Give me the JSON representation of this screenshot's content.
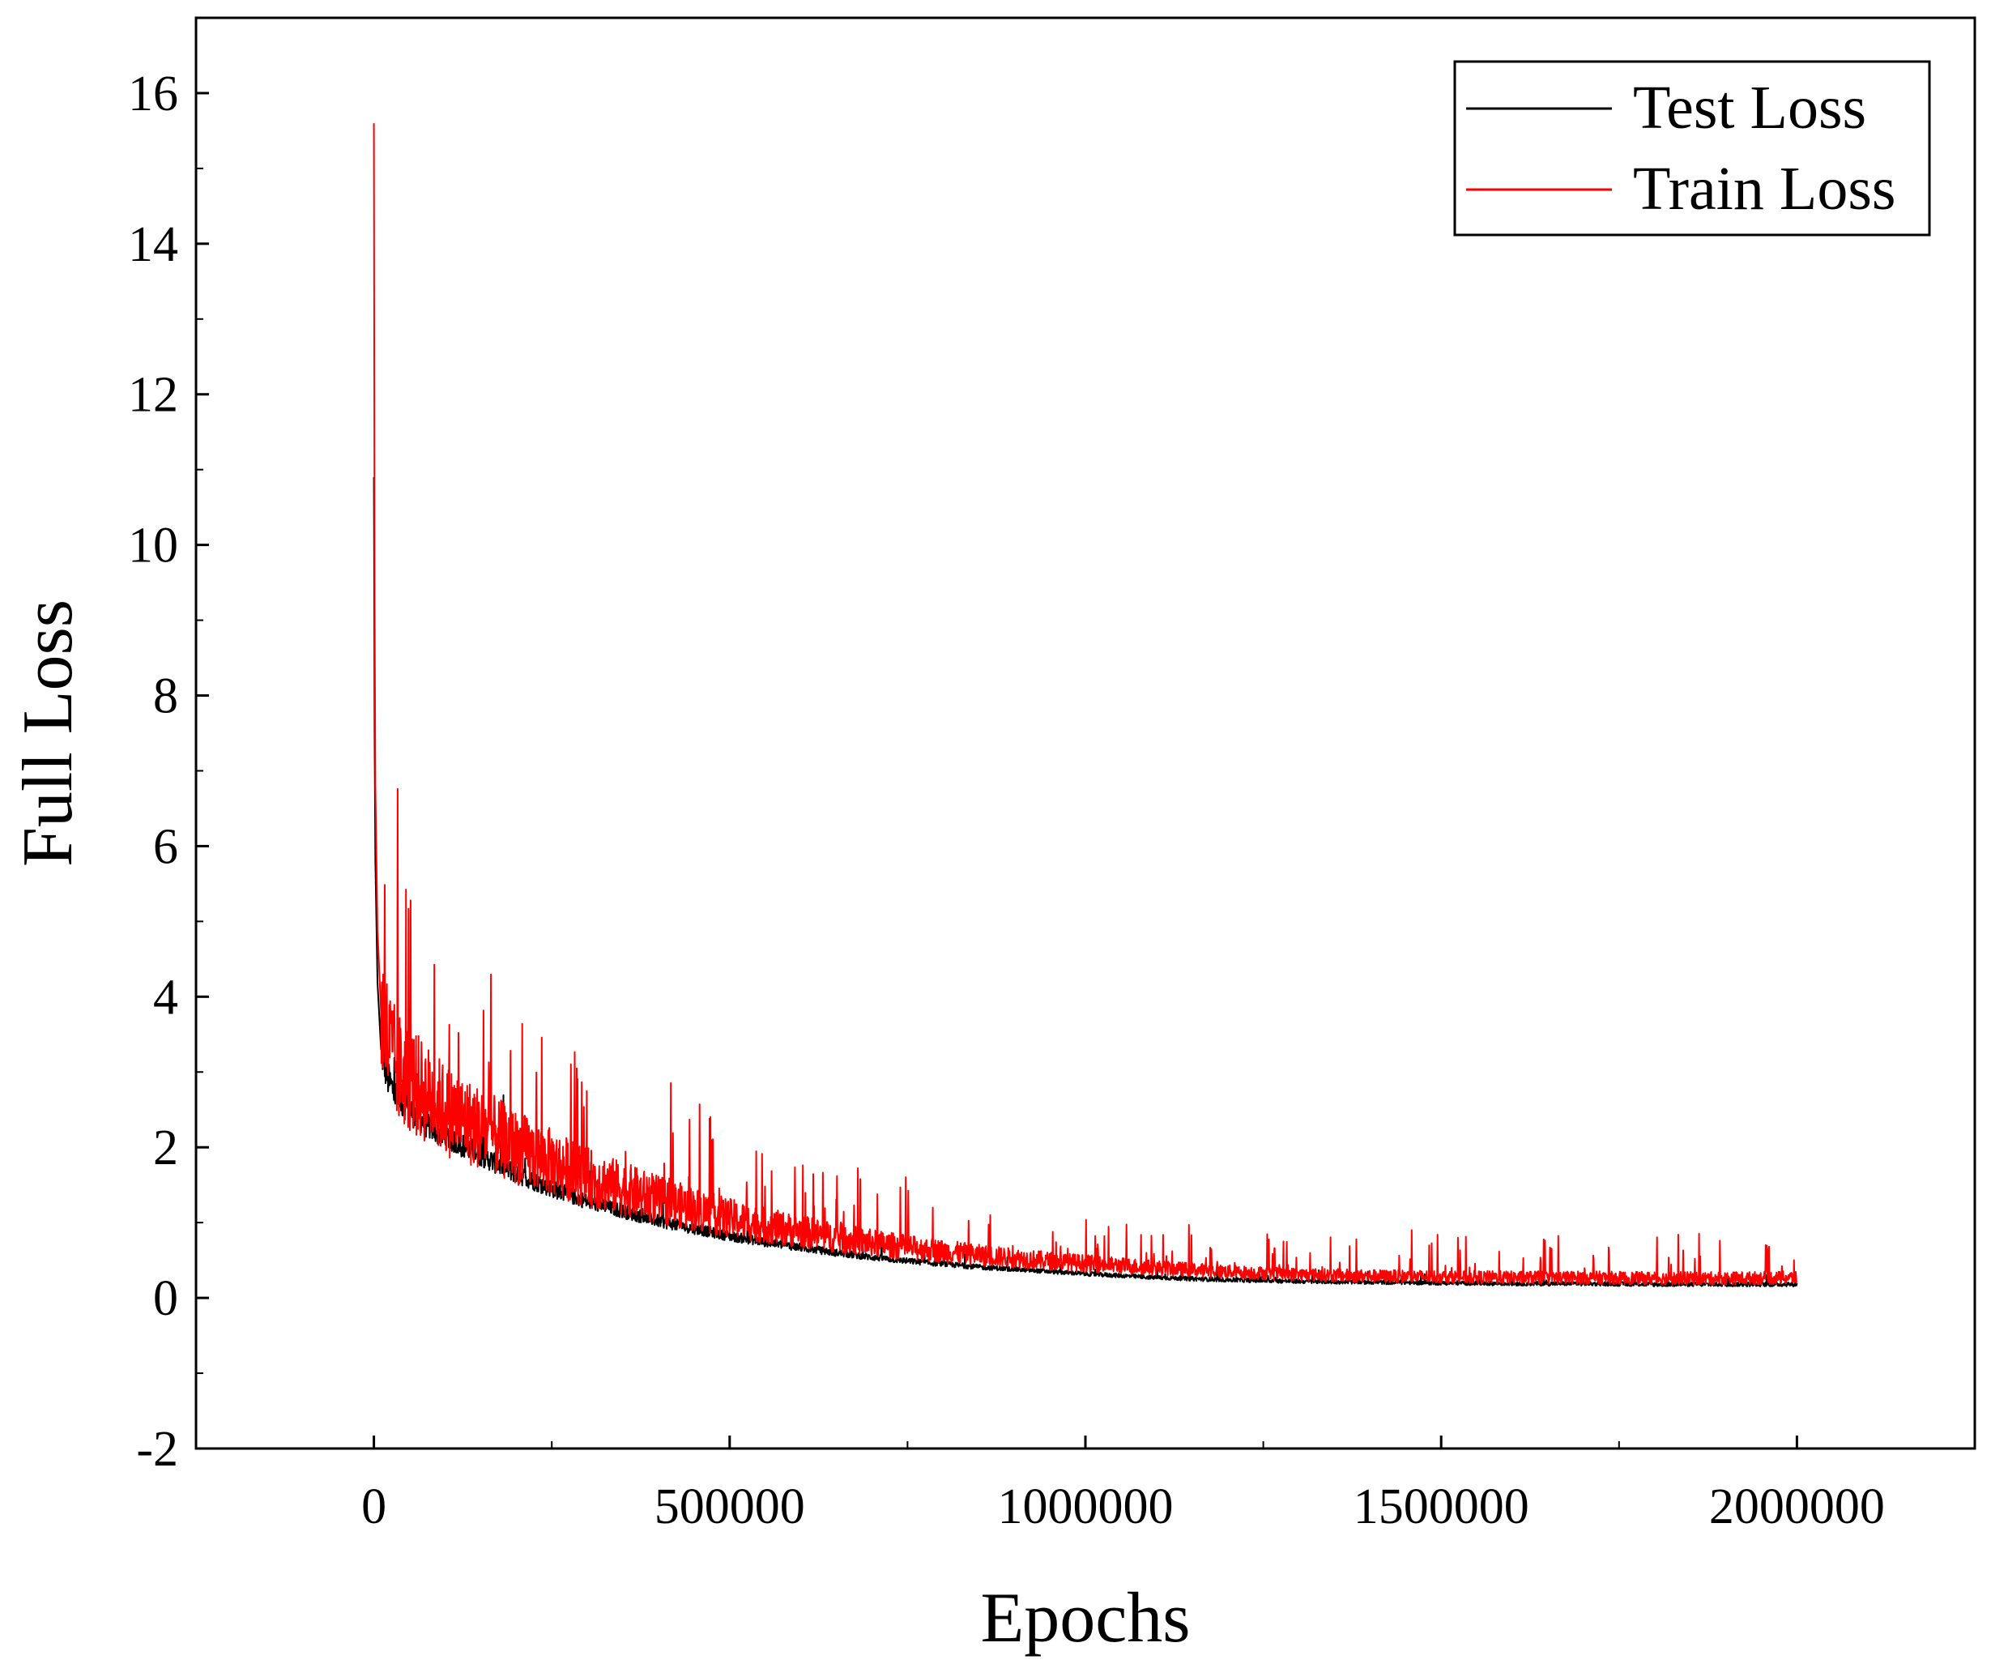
{
  "chart_data": {
    "type": "line",
    "title": "",
    "xlabel": "Epochs",
    "ylabel": "Full Loss",
    "xlim": [
      -250000,
      2250000
    ],
    "ylim": [
      -2,
      17
    ],
    "x_ticks": [
      0,
      500000,
      1000000,
      1500000,
      2000000
    ],
    "x_tick_labels": [
      "0",
      "500000",
      "1000000",
      "1500000",
      "2000000"
    ],
    "y_ticks": [
      -2,
      0,
      2,
      4,
      6,
      8,
      10,
      12,
      14,
      16
    ],
    "y_tick_labels": [
      "-2",
      "0",
      "2",
      "4",
      "6",
      "8",
      "10",
      "12",
      "14",
      "16"
    ],
    "grid": false,
    "legend_position": "top-right",
    "series": [
      {
        "name": "Test Loss",
        "color": "#000000",
        "x": [
          0,
          1000,
          2000,
          5000,
          10000,
          20000,
          30000,
          50000,
          75000,
          100000,
          150000,
          200000,
          250000,
          300000,
          350000,
          400000,
          450000,
          500000,
          550000,
          600000,
          650000,
          700000,
          750000,
          800000,
          850000,
          900000,
          950000,
          1000000,
          1100000,
          1200000,
          1300000,
          1400000,
          1500000,
          1600000,
          1700000,
          1800000,
          1900000,
          2000000
        ],
        "y": [
          10.9,
          7.4,
          5.8,
          4.2,
          3.3,
          2.9,
          2.7,
          2.5,
          2.3,
          2.15,
          1.9,
          1.65,
          1.45,
          1.28,
          1.15,
          1.02,
          0.92,
          0.82,
          0.74,
          0.67,
          0.6,
          0.54,
          0.49,
          0.45,
          0.41,
          0.38,
          0.35,
          0.32,
          0.27,
          0.24,
          0.22,
          0.21,
          0.2,
          0.19,
          0.19,
          0.18,
          0.18,
          0.18
        ]
      },
      {
        "name": "Train Loss",
        "color": "#ff0000",
        "x": [
          0,
          1000,
          2000,
          5000,
          10000,
          20000,
          30000,
          50000,
          75000,
          100000,
          150000,
          200000,
          250000,
          300000,
          350000,
          400000,
          450000,
          500000,
          550000,
          600000,
          650000,
          700000,
          750000,
          800000,
          850000,
          900000,
          950000,
          1000000,
          1100000,
          1200000,
          1300000,
          1400000,
          1500000,
          1600000,
          1700000,
          1800000,
          1900000,
          2000000
        ],
        "y": [
          15.6,
          9.2,
          6.8,
          4.9,
          3.8,
          3.4,
          3.1,
          2.9,
          2.7,
          2.5,
          2.25,
          2.0,
          1.8,
          1.6,
          1.45,
          1.3,
          1.18,
          1.06,
          0.96,
          0.88,
          0.8,
          0.73,
          0.67,
          0.62,
          0.57,
          0.53,
          0.49,
          0.46,
          0.4,
          0.35,
          0.31,
          0.29,
          0.28,
          0.27,
          0.27,
          0.26,
          0.26,
          0.27
        ]
      }
    ]
  }
}
